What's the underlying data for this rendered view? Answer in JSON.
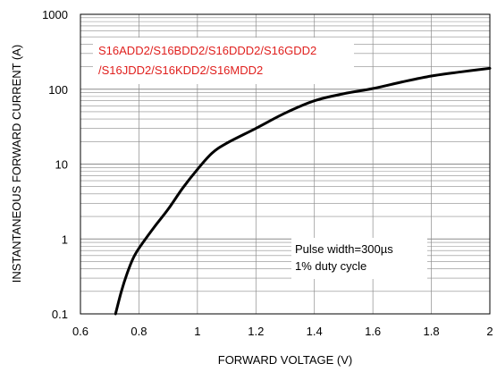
{
  "chart_data": {
    "type": "line",
    "title": "",
    "xlabel": "FORWARD VOLTAGE (V)",
    "ylabel": "INSTANTANEOUS FORWARD CURRENT (A)",
    "xlim": [
      0.6,
      2.0
    ],
    "ylim": [
      0.1,
      1000
    ],
    "yscale": "log",
    "grid": true,
    "x_ticks": [
      "0.6",
      "0.8",
      "1",
      "1.2",
      "1.4",
      "1.6",
      "1.8",
      "2"
    ],
    "y_ticks": [
      "0.1",
      "1",
      "10",
      "100",
      "1000"
    ],
    "series": [
      {
        "x": [
          0.72,
          0.74,
          0.76,
          0.78,
          0.8,
          0.85,
          0.9,
          0.95,
          1.0,
          1.05,
          1.1,
          1.2,
          1.3,
          1.4,
          1.5,
          1.6,
          1.7,
          1.8,
          1.9,
          2.0
        ],
        "y": [
          0.1,
          0.2,
          0.35,
          0.55,
          0.75,
          1.4,
          2.5,
          4.8,
          8.5,
          14,
          19,
          30,
          48,
          70,
          87,
          102,
          125,
          150,
          170,
          190
        ]
      }
    ],
    "annotations": {
      "part_numbers_line1": "S16ADD2/S16BDD2/S16DDD2/S16GDD2",
      "part_numbers_line2": "/S16JDD2/S16KDD2/S16MDD2",
      "pulse_line1": "Pulse width=300µs",
      "pulse_line2": "1% duty cycle"
    },
    "colors": {
      "curve": "#000000",
      "grid": "#8c8c8c",
      "part_text": "#e0201e"
    }
  }
}
